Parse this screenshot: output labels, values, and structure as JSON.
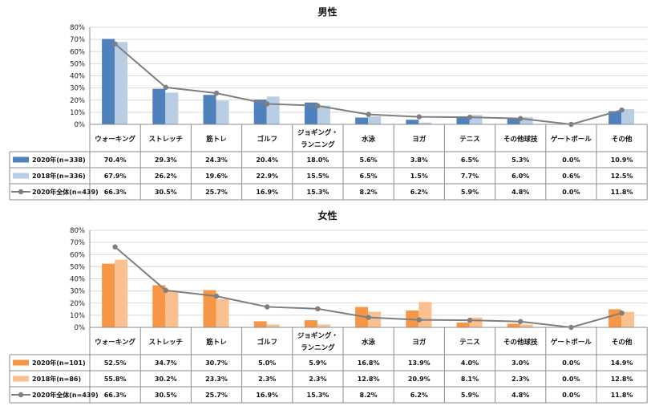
{
  "chart_data": [
    {
      "type": "bar",
      "title": "男性",
      "categories": [
        "ウォーキング",
        "ストレッチ",
        "筋トレ",
        "ゴルフ",
        "ジョギング・|ランニング",
        "水泳",
        "ヨガ",
        "テニス",
        "その他球技",
        "ゲートボール",
        "その他"
      ],
      "y_ticks": [
        "0%",
        "10%",
        "20%",
        "30%",
        "40%",
        "50%",
        "60%",
        "70%",
        "80%"
      ],
      "ylim": [
        0,
        80
      ],
      "series": [
        {
          "name": "2020年(n=338)",
          "kind": "bar",
          "color": "#4f81bd",
          "values": [
            70.4,
            29.3,
            24.3,
            20.4,
            18.0,
            5.6,
            3.8,
            6.5,
            5.3,
            0.0,
            10.9
          ],
          "labels": [
            "70.4%",
            "29.3%",
            "24.3%",
            "20.4%",
            "18.0%",
            "5.6%",
            "3.8%",
            "6.5%",
            "5.3%",
            "0.0%",
            "10.9%"
          ]
        },
        {
          "name": "2018年(n=336)",
          "kind": "bar",
          "color": "#b9cde5",
          "values": [
            67.9,
            26.2,
            19.6,
            22.9,
            15.5,
            6.5,
            1.5,
            7.7,
            6.0,
            0.6,
            12.5
          ],
          "labels": [
            "67.9%",
            "26.2%",
            "19.6%",
            "22.9%",
            "15.5%",
            "6.5%",
            "1.5%",
            "7.7%",
            "6.0%",
            "0.6%",
            "12.5%"
          ]
        },
        {
          "name": "2020年全体(n=439)",
          "kind": "line",
          "color": "#7f7f7f",
          "values": [
            66.3,
            30.5,
            25.7,
            16.9,
            15.3,
            8.2,
            6.2,
            5.9,
            4.8,
            0.0,
            11.8
          ],
          "labels": [
            "66.3%",
            "30.5%",
            "25.7%",
            "16.9%",
            "15.3%",
            "8.2%",
            "6.2%",
            "5.9%",
            "4.8%",
            "0.0%",
            "11.8%"
          ]
        }
      ]
    },
    {
      "type": "bar",
      "title": "女性",
      "categories": [
        "ウォーキング",
        "ストレッチ",
        "筋トレ",
        "ゴルフ",
        "ジョギング・|ランニング",
        "水泳",
        "ヨガ",
        "テニス",
        "その他球技",
        "ゲートボール",
        "その他"
      ],
      "y_ticks": [
        "0%",
        "10%",
        "20%",
        "30%",
        "40%",
        "50%",
        "60%",
        "70%",
        "80%"
      ],
      "ylim": [
        0,
        80
      ],
      "series": [
        {
          "name": "2020年(n=101)",
          "kind": "bar",
          "color": "#f79646",
          "values": [
            52.5,
            34.7,
            30.7,
            5.0,
            5.9,
            16.8,
            13.9,
            4.0,
            3.0,
            0.0,
            14.9
          ],
          "labels": [
            "52.5%",
            "34.7%",
            "30.7%",
            "5.0%",
            "5.9%",
            "16.8%",
            "13.9%",
            "4.0%",
            "3.0%",
            "0.0%",
            "14.9%"
          ]
        },
        {
          "name": "2018年(n=86)",
          "kind": "bar",
          "color": "#fac090",
          "values": [
            55.8,
            30.2,
            23.3,
            2.3,
            2.3,
            12.8,
            20.9,
            8.1,
            2.3,
            0.0,
            12.8
          ],
          "labels": [
            "55.8%",
            "30.2%",
            "23.3%",
            "2.3%",
            "2.3%",
            "12.8%",
            "20.9%",
            "8.1%",
            "2.3%",
            "0.0%",
            "12.8%"
          ]
        },
        {
          "name": "2020年全体(n=439)",
          "kind": "line",
          "color": "#7f7f7f",
          "values": [
            66.3,
            30.5,
            25.7,
            16.9,
            15.3,
            8.2,
            6.2,
            5.9,
            4.8,
            0.0,
            11.8
          ],
          "labels": [
            "66.3%",
            "30.5%",
            "25.7%",
            "16.9%",
            "15.3%",
            "8.2%",
            "6.2%",
            "5.9%",
            "4.8%",
            "0.0%",
            "11.8%"
          ]
        }
      ]
    }
  ]
}
